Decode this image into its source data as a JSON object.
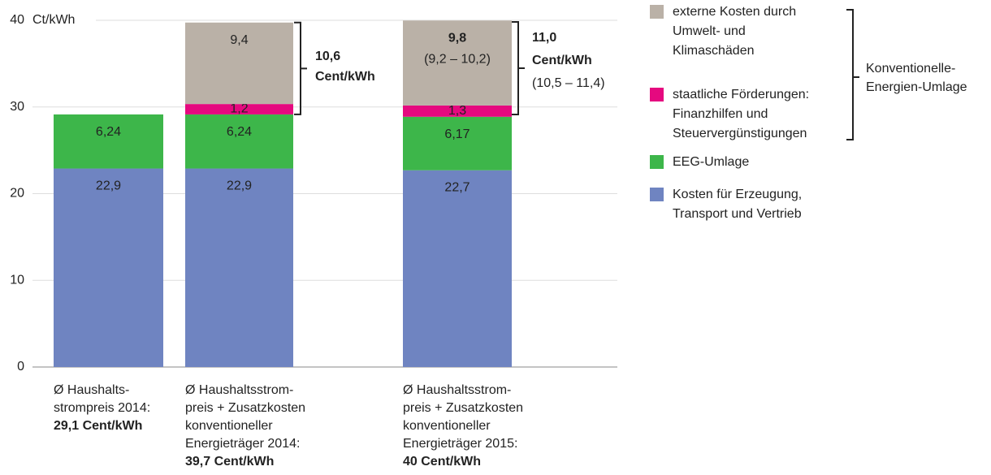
{
  "chart_data": {
    "type": "stacked_bar",
    "y_unit": "Ct/kWh",
    "ylim": [
      0,
      40
    ],
    "yticks": [
      0,
      10,
      20,
      30,
      40
    ],
    "grid": true,
    "categories": [
      "Ø Haushalts-\nstrompreis 2014:",
      "Ø Haushaltsstrom-\npreis + Zusatzkosten\nkonventioneller\nEnergieträger 2014:",
      "Ø Haushaltsstrom-\npreis + Zusatzkosten\nkonventioneller\nEnergieträger 2015:"
    ],
    "category_totals": [
      "29,1 Cent/kWh",
      "39,7 Cent/kWh",
      "40 Cent/kWh"
    ],
    "series": [
      {
        "name": "Kosten für Erzeugung,\nTransport und Vertrieb",
        "color": "#6f84c1",
        "values": [
          22.9,
          22.9,
          22.7
        ],
        "value_labels": [
          "22,9",
          "22,9",
          "22,7"
        ]
      },
      {
        "name": "EEG-Umlage",
        "color": "#3db64a",
        "values": [
          6.24,
          6.24,
          6.17
        ],
        "value_labels": [
          "6,24",
          "6,24",
          "6,17"
        ]
      },
      {
        "name": "staatliche Förderungen:\nFinanzhilfen und\nSteuervergünstigungen",
        "color": "#e5097f",
        "values": [
          null,
          1.2,
          1.3
        ],
        "value_labels": [
          null,
          "1,2",
          "1,3"
        ]
      },
      {
        "name": "externe Kosten durch\nUmwelt- und\nKlimaschäden",
        "color": "#bab1a7",
        "values": [
          null,
          9.4,
          9.8
        ],
        "value_labels": [
          null,
          "9,4",
          "9,8"
        ]
      }
    ],
    "range_note": "(9,2 – 10,2)",
    "brackets": [
      {
        "lines": [
          "10,6",
          "Cent/kWh"
        ]
      },
      {
        "lines": [
          "11,0",
          "Cent/kWh",
          "(10,5 – 11,4)"
        ]
      }
    ],
    "legend_group": "Konventionelle-\nEnergien-Umlage"
  }
}
